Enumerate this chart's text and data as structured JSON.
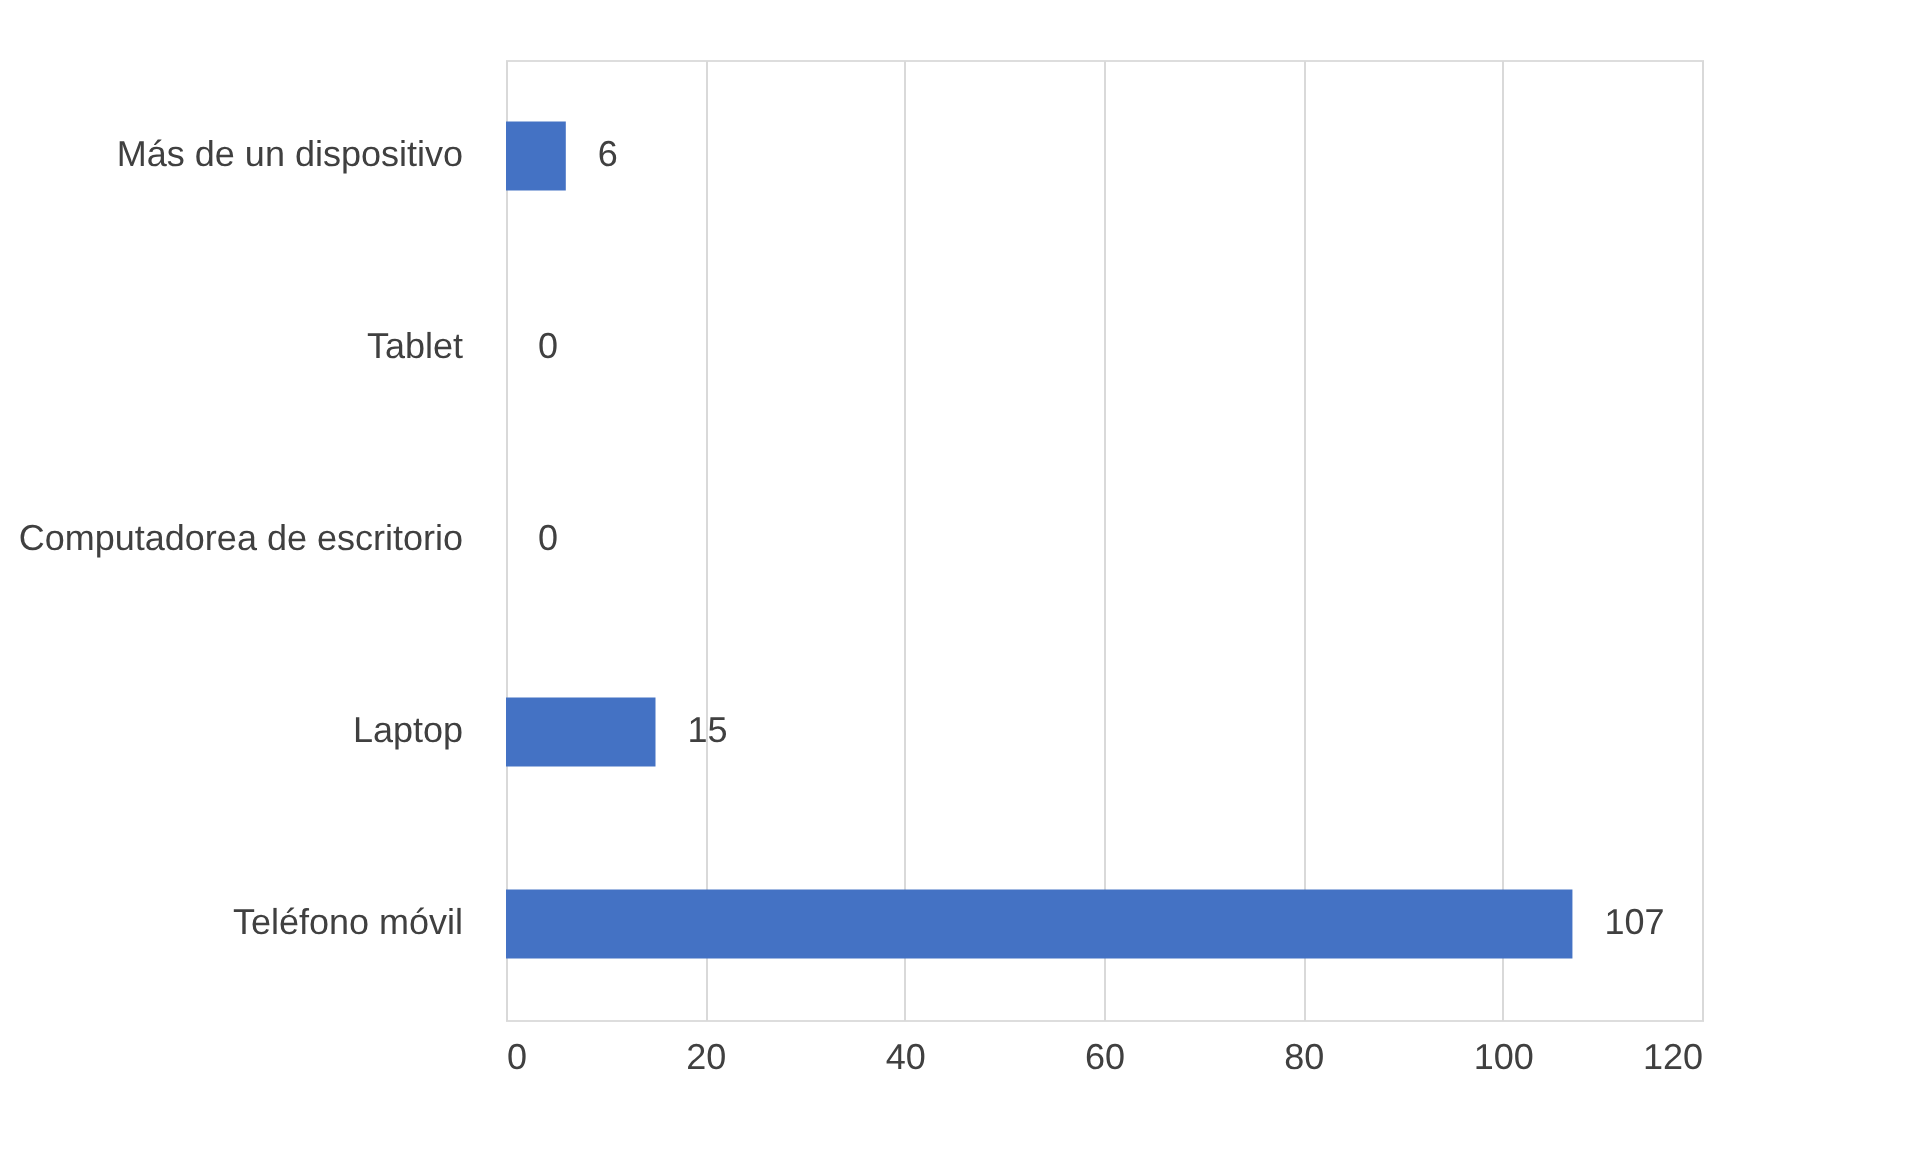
{
  "chart_data": {
    "type": "bar",
    "orientation": "horizontal",
    "categories": [
      "Más de un dispositivo",
      "Tablet",
      "Computadorea de escritorio",
      "Laptop",
      "Teléfono móvil"
    ],
    "values": [
      6,
      0,
      0,
      15,
      107
    ],
    "color": "#4472c4",
    "xlim": [
      0,
      120
    ],
    "xticks": [
      0,
      20,
      40,
      60,
      80,
      100,
      120
    ],
    "grid": "x",
    "data_labels": true
  }
}
